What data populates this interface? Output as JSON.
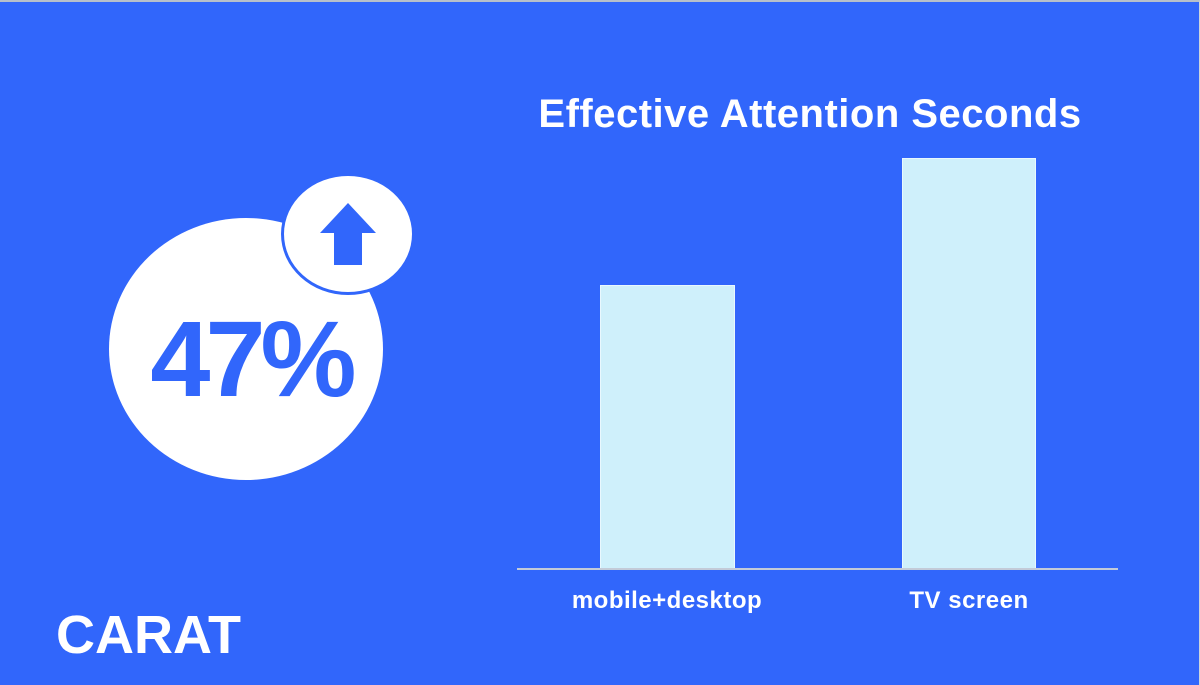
{
  "canvas": {
    "background_color": "#3166FB",
    "frame_top_color": "#B7C0CA"
  },
  "brand": {
    "logo_text": "CARAT"
  },
  "stat": {
    "value": "47%",
    "icon": "arrow-up-icon",
    "circle_color": "#FFFFFF",
    "value_color": "#3166FB",
    "arrow_color": "#3166FB"
  },
  "chart_data": {
    "type": "bar",
    "title": "Effective Attention Seconds",
    "categories": [
      "mobile+desktop",
      "TV screen"
    ],
    "values": [
      285,
      412
    ],
    "values_unit": "estimated relative bar height in px (chart shows no numeric axis or data labels)",
    "xlabel": "",
    "ylabel": "",
    "ylim": [
      0,
      418
    ],
    "grid": false,
    "legend_position": "none",
    "bar_color": "#CFF0FB",
    "bar_border_color": "#E9F8FE",
    "baseline_color": "#C3CBD8",
    "title_color": "#FFFFFF",
    "label_color": "#FFFFFF"
  }
}
